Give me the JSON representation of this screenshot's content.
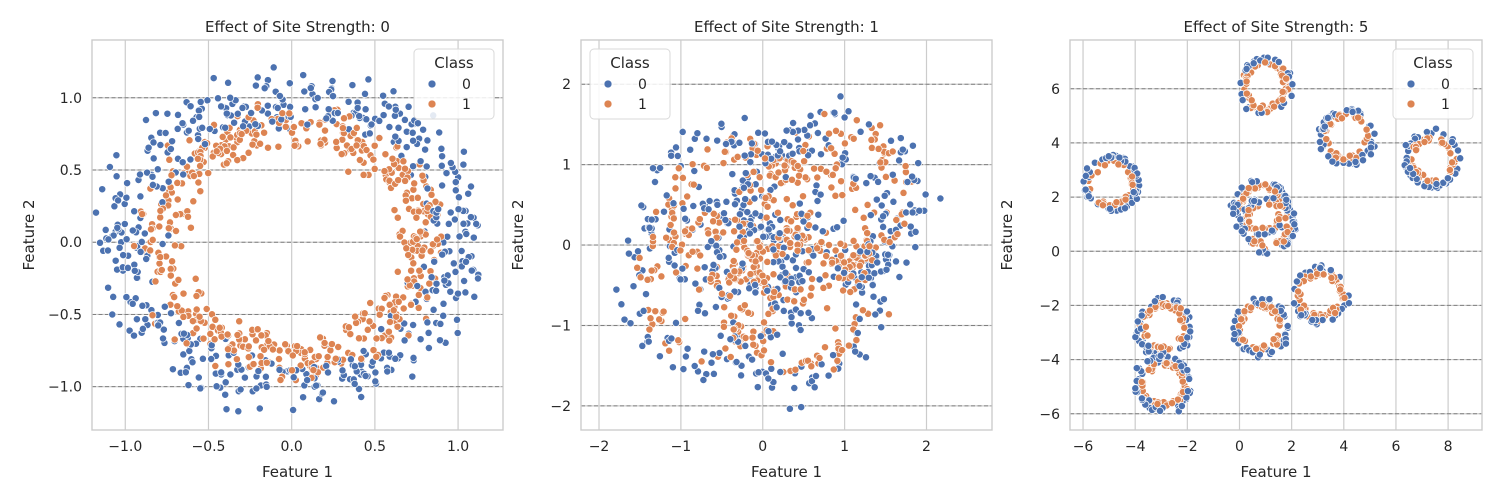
{
  "colors": {
    "class0": "#4c72b0",
    "class1": "#dd8452",
    "grid": "#cccccc",
    "hline": "#808080",
    "spine": "#cccccc"
  },
  "chart_data": [
    {
      "type": "scatter",
      "title": "Effect of Site Strength: 0",
      "xlabel": "Feature 1",
      "ylabel": "Feature 2",
      "xlim": [
        -1.2,
        1.27
      ],
      "ylim": [
        -1.3,
        1.4
      ],
      "xticks": [
        -1.0,
        -0.5,
        0.0,
        0.5,
        1.0
      ],
      "xtick_labels": [
        "−1.0",
        "−0.5",
        "0.0",
        "0.5",
        "1.0"
      ],
      "yticks": [
        -1.0,
        -0.5,
        0.0,
        0.5,
        1.0
      ],
      "ytick_labels": [
        "−1.0",
        "−0.5",
        "0.0",
        "0.5",
        "1.0"
      ],
      "hlines": [
        -1.0,
        -0.5,
        0.0,
        0.5,
        1.0
      ],
      "grid": true,
      "legend": {
        "title": "Class",
        "position": "top-right",
        "entries": [
          "0",
          "1"
        ]
      },
      "series": [
        {
          "name": "0",
          "shape": "ring",
          "centers": [
            [
              0,
              0
            ]
          ],
          "radius": 1.0,
          "spread": 0.1,
          "count": 500
        },
        {
          "name": "1",
          "shape": "ring",
          "centers": [
            [
              0,
              0
            ]
          ],
          "radius": 0.8,
          "spread": 0.08,
          "count": 500
        }
      ]
    },
    {
      "type": "scatter",
      "title": "Effect of Site Strength: 1",
      "xlabel": "Feature 1",
      "ylabel": "Feature 2",
      "xlim": [
        -2.22,
        2.8
      ],
      "ylim": [
        -2.3,
        2.55
      ],
      "xticks": [
        -2,
        -1,
        0,
        1,
        2
      ],
      "xtick_labels": [
        "−2",
        "−1",
        "0",
        "1",
        "2"
      ],
      "yticks": [
        -2,
        -1,
        0,
        1,
        2
      ],
      "ytick_labels": [
        "−2",
        "−1",
        "0",
        "1",
        "2"
      ],
      "hlines": [
        -2,
        -1,
        0,
        1,
        2
      ],
      "grid": true,
      "legend": {
        "title": "Class",
        "position": "top-left",
        "entries": [
          "0",
          "1"
        ]
      },
      "series": [
        {
          "name": "0",
          "shape": "rings",
          "centers": [
            [
              -0.3,
              0.4
            ],
            [
              0.5,
              0.2
            ],
            [
              0.9,
              0.6
            ],
            [
              -0.6,
              -0.5
            ],
            [
              0.4,
              -0.7
            ]
          ],
          "radius": 1.0,
          "spread": 0.12,
          "count": 500
        },
        {
          "name": "1",
          "shape": "rings",
          "centers": [
            [
              -0.3,
              0.4
            ],
            [
              0.5,
              0.2
            ],
            [
              0.9,
              0.6
            ],
            [
              -0.6,
              -0.5
            ],
            [
              0.4,
              -0.7
            ]
          ],
          "radius": 0.8,
          "spread": 0.1,
          "count": 500
        }
      ]
    },
    {
      "type": "scatter",
      "title": "Effect of Site Strength: 5",
      "xlabel": "Feature 1",
      "ylabel": "Feature 2",
      "xlim": [
        -6.5,
        9.3
      ],
      "ylim": [
        -6.6,
        7.8
      ],
      "xticks": [
        -6,
        -4,
        -2,
        0,
        2,
        4,
        6,
        8
      ],
      "xtick_labels": [
        "−6",
        "−4",
        "−2",
        "0",
        "2",
        "4",
        "6",
        "8"
      ],
      "yticks": [
        -6,
        -4,
        -2,
        0,
        2,
        4,
        6
      ],
      "ytick_labels": [
        "−6",
        "−4",
        "−2",
        "0",
        "2",
        "4",
        "6"
      ],
      "hlines": [
        -6,
        -4,
        -2,
        0,
        2,
        4,
        6
      ],
      "grid": true,
      "legend": {
        "title": "Class",
        "position": "top-right",
        "entries": [
          "0",
          "1"
        ]
      },
      "series": [
        {
          "name": "0",
          "shape": "rings",
          "centers": [
            [
              1.0,
              6.1
            ],
            [
              4.1,
              4.2
            ],
            [
              7.4,
              3.4
            ],
            [
              -4.9,
              2.5
            ],
            [
              0.8,
              1.6
            ],
            [
              1.1,
              1.0
            ],
            [
              3.1,
              -1.6
            ],
            [
              -2.9,
              -2.8
            ],
            [
              0.8,
              -2.8
            ],
            [
              -2.9,
              -4.9
            ]
          ],
          "radius": 1.0,
          "spread": 0.06,
          "count": 500
        },
        {
          "name": "1",
          "shape": "rings",
          "centers": [
            [
              1.0,
              6.1
            ],
            [
              4.1,
              4.2
            ],
            [
              7.4,
              3.4
            ],
            [
              -4.9,
              2.5
            ],
            [
              0.8,
              1.6
            ],
            [
              1.1,
              1.0
            ],
            [
              3.1,
              -1.6
            ],
            [
              -2.9,
              -2.8
            ],
            [
              0.8,
              -2.8
            ],
            [
              -2.9,
              -4.9
            ]
          ],
          "radius": 0.8,
          "spread": 0.06,
          "count": 500
        }
      ]
    }
  ]
}
